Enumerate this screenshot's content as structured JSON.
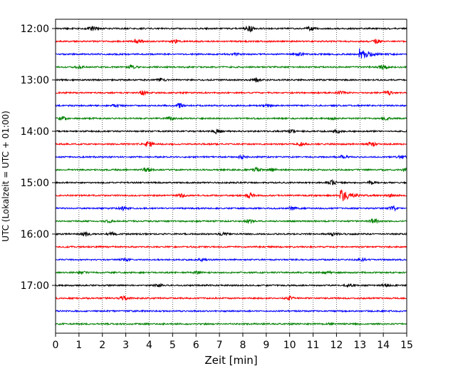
{
  "chart_data": {
    "type": "line",
    "xlabel": "Zeit  [min]",
    "ylabel": "UTC (Lokalzeit = UTC + 01:00)",
    "xlim": [
      0,
      15
    ],
    "x_ticks": [
      "0",
      "1",
      "2",
      "3",
      "4",
      "5",
      "6",
      "7",
      "8",
      "9",
      "10",
      "11",
      "12",
      "13",
      "14",
      "15"
    ],
    "y_ticks": [
      "12:00",
      "13:00",
      "14:00",
      "15:00",
      "16:00",
      "17:00"
    ],
    "grid": "vertical-dotted",
    "series_colors": [
      "#000000",
      "#ff0000",
      "#0000ff",
      "#008000"
    ],
    "rows": [
      {
        "start": "12:00",
        "color": "#000000",
        "events": [
          {
            "t": 1.6,
            "amp": 0.5
          },
          {
            "t": 8.3,
            "amp": 0.8
          },
          {
            "t": 10.9,
            "amp": 0.4
          }
        ]
      },
      {
        "start": "12:15",
        "color": "#ff0000",
        "events": [
          {
            "t": 3.5,
            "amp": 0.6
          },
          {
            "t": 5.1,
            "amp": 0.5
          },
          {
            "t": 13.7,
            "amp": 0.5
          }
        ]
      },
      {
        "start": "12:30",
        "color": "#0000ff",
        "events": [
          {
            "t": 13.0,
            "amp": 1.3
          },
          {
            "t": 10.4,
            "amp": 0.4
          },
          {
            "t": 7.7,
            "amp": 0.3
          }
        ]
      },
      {
        "start": "12:45",
        "color": "#008000",
        "events": [
          {
            "t": 3.3,
            "amp": 0.6
          },
          {
            "t": 14.0,
            "amp": 0.6
          },
          {
            "t": 1.0,
            "amp": 0.3
          }
        ]
      },
      {
        "start": "13:00",
        "color": "#000000",
        "events": [
          {
            "t": 8.6,
            "amp": 0.5
          },
          {
            "t": 4.5,
            "amp": 0.4
          }
        ]
      },
      {
        "start": "13:15",
        "color": "#ff0000",
        "events": [
          {
            "t": 3.7,
            "amp": 0.5
          },
          {
            "t": 12.2,
            "amp": 0.4
          },
          {
            "t": 14.2,
            "amp": 0.5
          }
        ]
      },
      {
        "start": "13:30",
        "color": "#0000ff",
        "events": [
          {
            "t": 5.3,
            "amp": 0.5
          },
          {
            "t": 2.6,
            "amp": 0.3
          },
          {
            "t": 9.0,
            "amp": 0.3
          }
        ]
      },
      {
        "start": "13:45",
        "color": "#008000",
        "events": [
          {
            "t": 0.3,
            "amp": 0.5
          },
          {
            "t": 4.9,
            "amp": 0.4
          },
          {
            "t": 14.1,
            "amp": 0.4
          },
          {
            "t": 11.8,
            "amp": 0.3
          }
        ]
      },
      {
        "start": "14:00",
        "color": "#000000",
        "events": [
          {
            "t": 6.9,
            "amp": 0.6
          },
          {
            "t": 12.0,
            "amp": 0.5
          },
          {
            "t": 10.1,
            "amp": 0.4
          }
        ]
      },
      {
        "start": "14:15",
        "color": "#ff0000",
        "events": [
          {
            "t": 4.0,
            "amp": 0.7
          },
          {
            "t": 10.5,
            "amp": 0.4
          },
          {
            "t": 13.5,
            "amp": 0.5
          }
        ]
      },
      {
        "start": "14:30",
        "color": "#0000ff",
        "events": [
          {
            "t": 8.0,
            "amp": 0.5
          },
          {
            "t": 12.3,
            "amp": 0.4
          },
          {
            "t": 14.8,
            "amp": 0.4
          }
        ]
      },
      {
        "start": "14:45",
        "color": "#008000",
        "events": [
          {
            "t": 3.9,
            "amp": 0.6
          },
          {
            "t": 8.6,
            "amp": 0.5
          },
          {
            "t": 9.3,
            "amp": 0.4
          },
          {
            "t": 15.0,
            "amp": 0.5
          }
        ]
      },
      {
        "start": "15:00",
        "color": "#000000",
        "events": [
          {
            "t": 11.8,
            "amp": 0.6
          },
          {
            "t": 13.5,
            "amp": 0.4
          }
        ]
      },
      {
        "start": "15:15",
        "color": "#ff0000",
        "events": [
          {
            "t": 12.2,
            "amp": 1.6
          },
          {
            "t": 8.3,
            "amp": 0.7
          },
          {
            "t": 5.4,
            "amp": 0.4
          },
          {
            "t": 14.3,
            "amp": 0.4
          }
        ]
      },
      {
        "start": "15:30",
        "color": "#0000ff",
        "events": [
          {
            "t": 2.9,
            "amp": 0.4
          },
          {
            "t": 10.1,
            "amp": 0.4
          },
          {
            "t": 14.4,
            "amp": 0.6
          }
        ]
      },
      {
        "start": "15:45",
        "color": "#008000",
        "events": [
          {
            "t": 13.6,
            "amp": 0.6
          },
          {
            "t": 8.3,
            "amp": 0.4
          },
          {
            "t": 2.3,
            "amp": 0.3
          }
        ]
      },
      {
        "start": "16:00",
        "color": "#000000",
        "events": [
          {
            "t": 1.3,
            "amp": 0.5
          },
          {
            "t": 2.4,
            "amp": 0.4
          },
          {
            "t": 11.9,
            "amp": 0.4
          },
          {
            "t": 7.2,
            "amp": 0.3
          }
        ]
      },
      {
        "start": "16:15",
        "color": "#ff0000",
        "events": []
      },
      {
        "start": "16:30",
        "color": "#0000ff",
        "events": [
          {
            "t": 3.0,
            "amp": 0.3
          },
          {
            "t": 13.1,
            "amp": 0.3
          },
          {
            "t": 6.3,
            "amp": 0.3
          }
        ]
      },
      {
        "start": "16:45",
        "color": "#008000",
        "events": [
          {
            "t": 1.1,
            "amp": 0.4
          },
          {
            "t": 6.1,
            "amp": 0.3
          },
          {
            "t": 11.6,
            "amp": 0.3
          }
        ]
      },
      {
        "start": "17:00",
        "color": "#000000",
        "events": [
          {
            "t": 12.6,
            "amp": 0.4
          },
          {
            "t": 14.1,
            "amp": 0.3
          },
          {
            "t": 4.4,
            "amp": 0.3
          }
        ]
      },
      {
        "start": "17:15",
        "color": "#ff0000",
        "events": [
          {
            "t": 2.9,
            "amp": 0.5
          },
          {
            "t": 10.0,
            "amp": 0.4
          }
        ]
      },
      {
        "start": "17:30",
        "color": "#0000ff",
        "events": []
      },
      {
        "start": "17:45",
        "color": "#008000",
        "events": [
          {
            "t": 11.8,
            "amp": 0.3
          }
        ]
      }
    ]
  }
}
